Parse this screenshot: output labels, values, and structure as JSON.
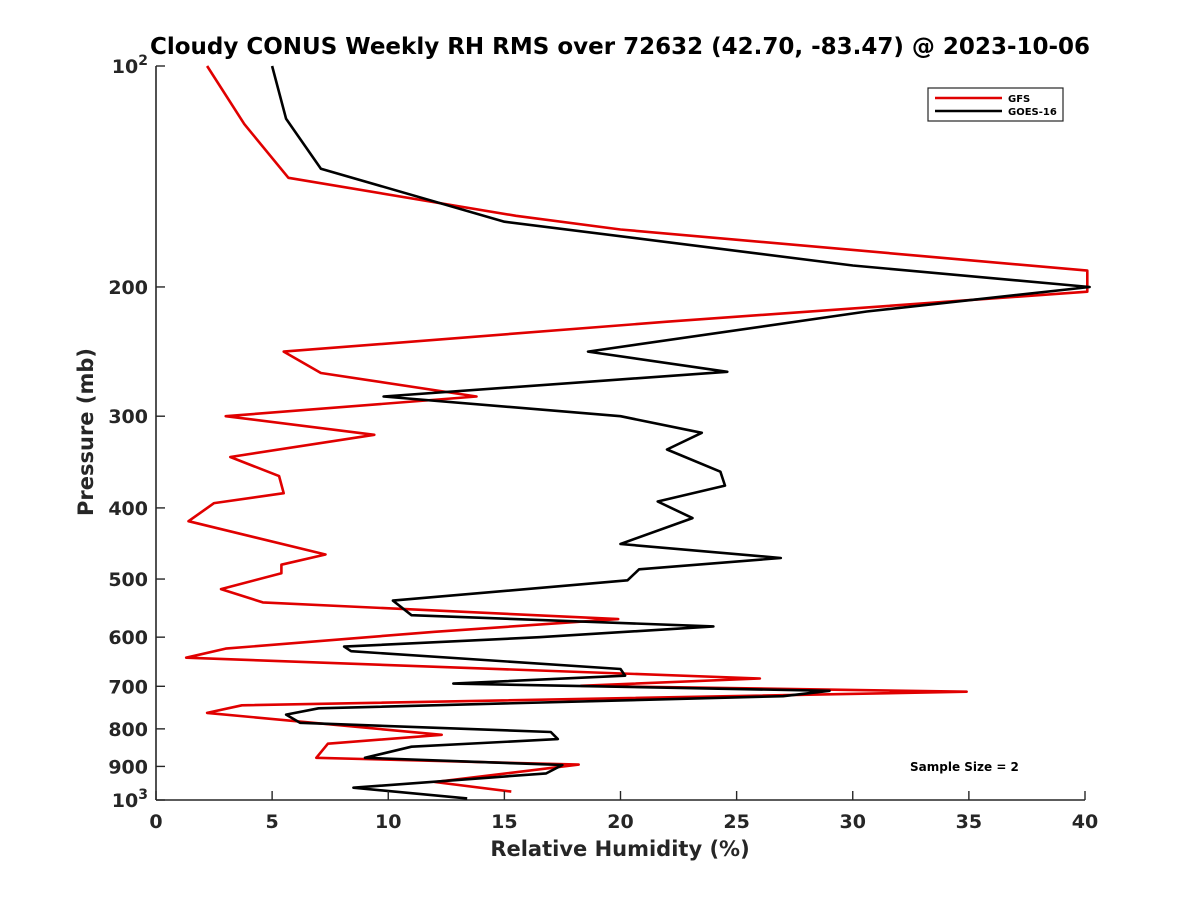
{
  "chart_data": {
    "type": "line",
    "title": "Cloudy CONUS Weekly RH RMS over 72632 (42.70, -83.47) @ 2023-10-06",
    "xlabel": "Relative Humidity (%)",
    "ylabel": "Pressure (mb)",
    "xlim": [
      0,
      40
    ],
    "ylim": [
      100,
      1000
    ],
    "y_scale": "log",
    "y_reversed": true,
    "grid": false,
    "legend_position": "top-right",
    "x_ticks": [
      "0",
      "5",
      "10",
      "15",
      "20",
      "25",
      "30",
      "35",
      "40"
    ],
    "x_tick_values": [
      0,
      5,
      10,
      15,
      20,
      25,
      30,
      35,
      40
    ],
    "y_ticks": [
      {
        "value": 100,
        "base": "10",
        "exp": "2"
      },
      {
        "value": 200,
        "label": "200"
      },
      {
        "value": 300,
        "label": "300"
      },
      {
        "value": 400,
        "label": "400"
      },
      {
        "value": 500,
        "label": "500"
      },
      {
        "value": 600,
        "label": "600"
      },
      {
        "value": 700,
        "label": "700"
      },
      {
        "value": 800,
        "label": "800"
      },
      {
        "value": 900,
        "label": "900"
      },
      {
        "value": 1000,
        "base": "10",
        "exp": "3"
      }
    ],
    "series": [
      {
        "name": "GFS",
        "color": "#e00000",
        "points": [
          [
            2.2,
            100
          ],
          [
            3.8,
            120
          ],
          [
            5.7,
            142
          ],
          [
            15.5,
            160
          ],
          [
            20,
            167
          ],
          [
            40.1,
            190
          ],
          [
            40.1,
            203
          ],
          [
            22,
            223
          ],
          [
            5.5,
            245
          ],
          [
            7.1,
            262
          ],
          [
            13.8,
            282
          ],
          [
            3,
            300
          ],
          [
            9.4,
            318
          ],
          [
            3.2,
            341
          ],
          [
            5.3,
            362
          ],
          [
            5.5,
            382
          ],
          [
            2.5,
            394
          ],
          [
            1.4,
            417
          ],
          [
            7.3,
            463
          ],
          [
            5.4,
            478
          ],
          [
            5.4,
            491
          ],
          [
            2.8,
            516
          ],
          [
            4.6,
            538
          ],
          [
            19.9,
            567
          ],
          [
            12,
            590
          ],
          [
            3,
            622
          ],
          [
            1.3,
            640
          ],
          [
            26,
            683
          ],
          [
            18.3,
            699
          ],
          [
            34.9,
            712
          ],
          [
            3.7,
            743
          ],
          [
            2.2,
            761
          ],
          [
            12.3,
            815
          ],
          [
            7.4,
            838
          ],
          [
            6.9,
            876
          ],
          [
            18.2,
            895
          ],
          [
            12,
            945
          ],
          [
            15.3,
            974
          ]
        ]
      },
      {
        "name": "GOES-16",
        "color": "#000000",
        "points": [
          [
            5,
            100
          ],
          [
            5.6,
            118
          ],
          [
            7.1,
            138
          ],
          [
            15,
            163
          ],
          [
            30,
            187
          ],
          [
            40.2,
            200
          ],
          [
            30.6,
            216
          ],
          [
            18.6,
            245
          ],
          [
            24.6,
            261
          ],
          [
            9.8,
            282
          ],
          [
            20,
            300
          ],
          [
            23.5,
            316
          ],
          [
            22,
            333
          ],
          [
            24.3,
            357
          ],
          [
            24.5,
            373
          ],
          [
            21.6,
            392
          ],
          [
            23.1,
            413
          ],
          [
            20,
            448
          ],
          [
            26.9,
            468
          ],
          [
            20.8,
            485
          ],
          [
            20.3,
            502
          ],
          [
            10.2,
            535
          ],
          [
            11,
            560
          ],
          [
            24,
            580
          ],
          [
            16.5,
            600
          ],
          [
            8.1,
            618
          ],
          [
            8.4,
            627
          ],
          [
            20,
            663
          ],
          [
            20.2,
            677
          ],
          [
            12.8,
            694
          ],
          [
            29,
            710
          ],
          [
            27,
            722
          ],
          [
            7,
            750
          ],
          [
            5.6,
            765
          ],
          [
            6.2,
            785
          ],
          [
            17,
            808
          ],
          [
            17.3,
            826
          ],
          [
            11,
            846
          ],
          [
            9,
            876
          ],
          [
            17.5,
            896
          ],
          [
            16.8,
            920
          ],
          [
            8.5,
            962
          ],
          [
            13.4,
            995
          ]
        ]
      }
    ],
    "annotation": "Sample Size = 2"
  }
}
